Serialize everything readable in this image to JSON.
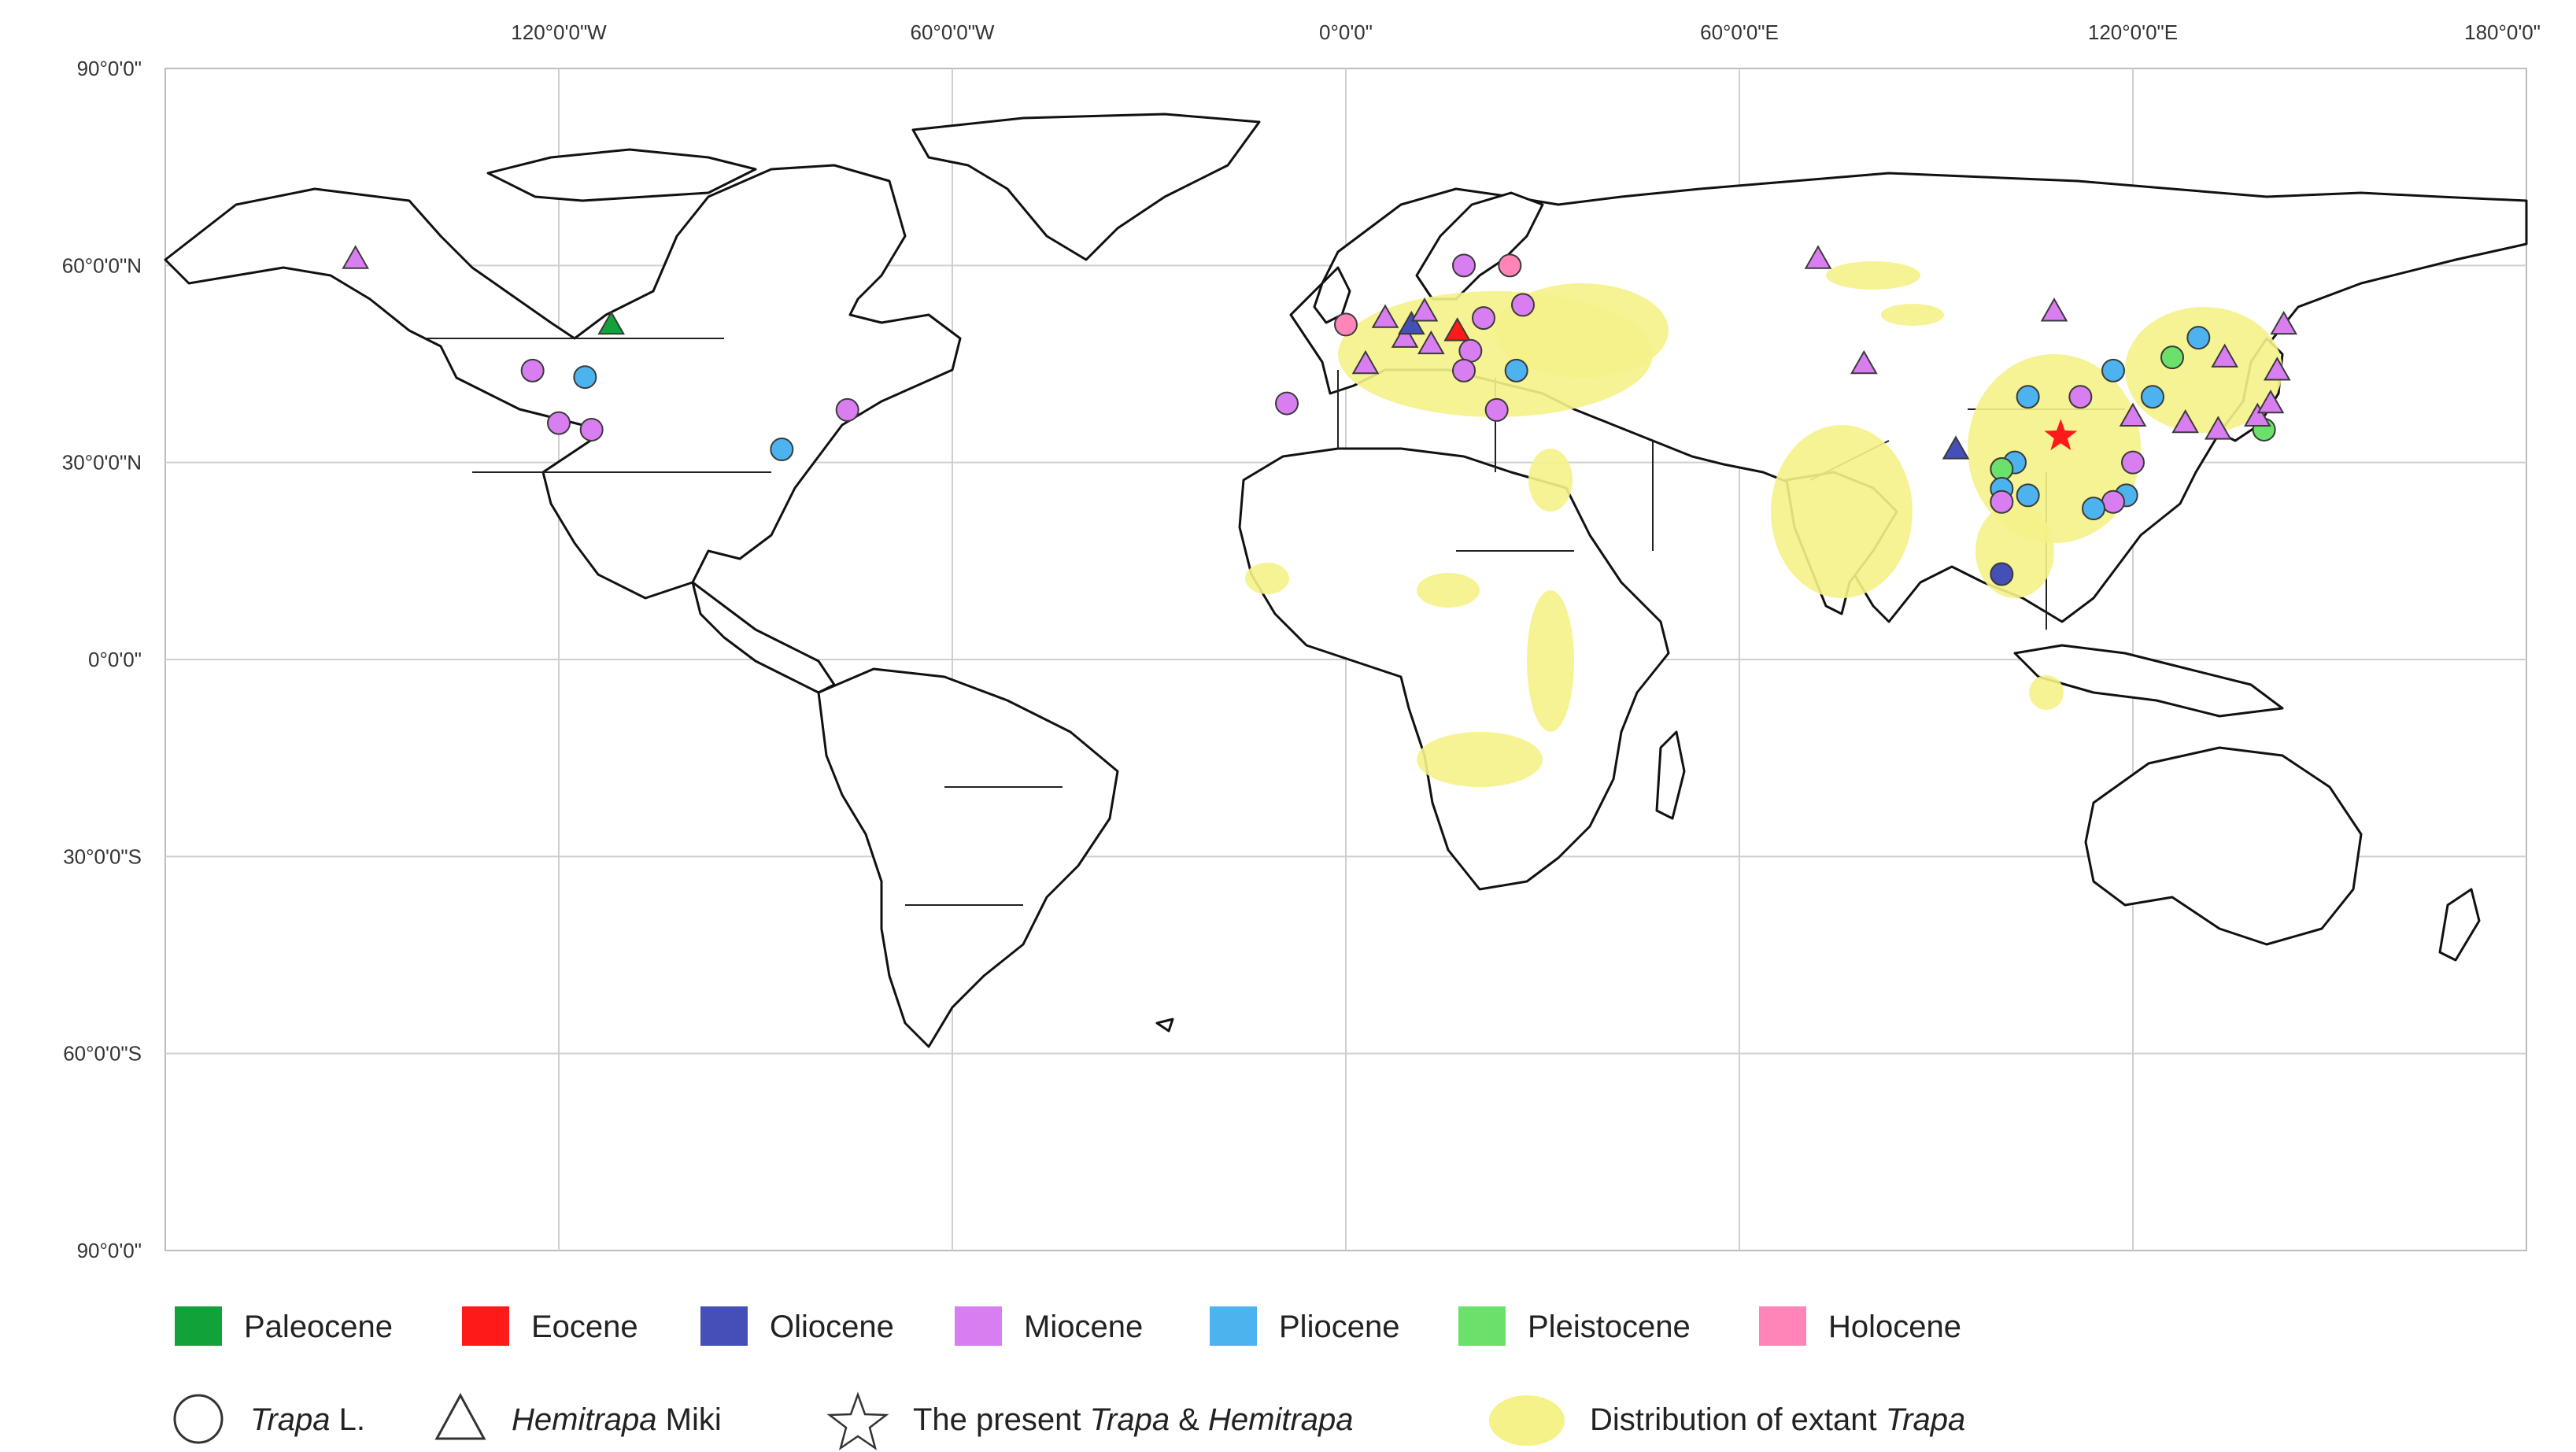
{
  "axes": {
    "lon_labels": [
      "120°0'0\"W",
      "60°0'0\"W",
      "0°0'0\"",
      "60°0'0\"E",
      "120°0'0\"E",
      "180°0'0\""
    ],
    "lat_labels": [
      "90°0'0\"",
      "60°0'0\"N",
      "30°0'0\"N",
      "0°0'0\"",
      "30°0'0\"S",
      "60°0'0\"S",
      "90°0'0\""
    ],
    "lon_values": [
      -120,
      -60,
      0,
      60,
      120,
      180
    ],
    "lat_values": [
      90,
      60,
      30,
      0,
      -30,
      -60,
      -90
    ],
    "lon_range": [
      -180,
      180
    ],
    "lat_range": [
      -90,
      90
    ]
  },
  "colors": {
    "Paleocene": "#11a33a",
    "Eocene": "#ff1a1a",
    "Oliocene": "#4450b8",
    "Miocene": "#d97ef0",
    "Pliocene": "#4db3ef",
    "Pleistocene": "#6be06b",
    "Holocene": "#ff85b8",
    "distribution": "#f5f28a",
    "present": "#ff1a1a"
  },
  "legend": {
    "epochs": [
      "Paleocene",
      "Eocene",
      "Oliocene",
      "Miocene",
      "Pliocene",
      "Pleistocene",
      "Holocene"
    ],
    "trapa_italic": "Trapa",
    "trapa_rest": " L.",
    "hemitrapa_italic": "Hemitrapa",
    "hemitrapa_rest": " Miki",
    "present_a": "The present ",
    "present_trapa": "Trapa",
    "present_amp": " & ",
    "present_hemitrapa": "Hemitrapa",
    "distribution_a": "Distribution of extant ",
    "distribution_trapa": "Trapa"
  },
  "fossil_sites": [
    {
      "shape": "circle",
      "epoch": "Miocene",
      "lon": -124,
      "lat": 44
    },
    {
      "shape": "circle",
      "epoch": "Pliocene",
      "lon": -116,
      "lat": 43
    },
    {
      "shape": "circle",
      "epoch": "Miocene",
      "lon": -120,
      "lat": 36
    },
    {
      "shape": "circle",
      "epoch": "Miocene",
      "lon": -115,
      "lat": 35
    },
    {
      "shape": "circle",
      "epoch": "Miocene",
      "lon": -76,
      "lat": 38
    },
    {
      "shape": "circle",
      "epoch": "Pliocene",
      "lon": -86,
      "lat": 32
    },
    {
      "shape": "triangle",
      "epoch": "Miocene",
      "lon": -151,
      "lat": 61
    },
    {
      "shape": "triangle",
      "epoch": "Paleocene",
      "lon": -112,
      "lat": 51
    },
    {
      "shape": "circle",
      "epoch": "Miocene",
      "lon": -9,
      "lat": 39
    },
    {
      "shape": "circle",
      "epoch": "Holocene",
      "lon": 0,
      "lat": 51
    },
    {
      "shape": "triangle",
      "epoch": "Miocene",
      "lon": 3,
      "lat": 45
    },
    {
      "shape": "triangle",
      "epoch": "Miocene",
      "lon": 6,
      "lat": 52
    },
    {
      "shape": "triangle",
      "epoch": "Miocene",
      "lon": 9,
      "lat": 49
    },
    {
      "shape": "triangle",
      "epoch": "Oliocene",
      "lon": 10,
      "lat": 51
    },
    {
      "shape": "triangle",
      "epoch": "Miocene",
      "lon": 12,
      "lat": 53
    },
    {
      "shape": "triangle",
      "epoch": "Miocene",
      "lon": 13,
      "lat": 48
    },
    {
      "shape": "triangle",
      "epoch": "Eocene",
      "lon": 17,
      "lat": 50
    },
    {
      "shape": "circle",
      "epoch": "Miocene",
      "lon": 19,
      "lat": 47
    },
    {
      "shape": "circle",
      "epoch": "Miocene",
      "lon": 18,
      "lat": 44
    },
    {
      "shape": "circle",
      "epoch": "Miocene",
      "lon": 18,
      "lat": 60
    },
    {
      "shape": "circle",
      "epoch": "Holocene",
      "lon": 25,
      "lat": 60
    },
    {
      "shape": "circle",
      "epoch": "Miocene",
      "lon": 21,
      "lat": 52
    },
    {
      "shape": "circle",
      "epoch": "Miocene",
      "lon": 27,
      "lat": 54
    },
    {
      "shape": "circle",
      "epoch": "Pliocene",
      "lon": 26,
      "lat": 44
    },
    {
      "shape": "circle",
      "epoch": "Miocene",
      "lon": 23,
      "lat": 38
    },
    {
      "shape": "triangle",
      "epoch": "Miocene",
      "lon": 72,
      "lat": 61
    },
    {
      "shape": "triangle",
      "epoch": "Miocene",
      "lon": 79,
      "lat": 45
    },
    {
      "shape": "triangle",
      "epoch": "Oliocene",
      "lon": 93,
      "lat": 32
    },
    {
      "shape": "triangle",
      "epoch": "Miocene",
      "lon": 108,
      "lat": 53
    },
    {
      "shape": "circle",
      "epoch": "Pliocene",
      "lon": 104,
      "lat": 40
    },
    {
      "shape": "circle",
      "epoch": "Miocene",
      "lon": 112,
      "lat": 40
    },
    {
      "shape": "circle",
      "epoch": "Pliocene",
      "lon": 117,
      "lat": 44
    },
    {
      "shape": "circle",
      "epoch": "Pliocene",
      "lon": 123,
      "lat": 40
    },
    {
      "shape": "circle",
      "epoch": "Pleistocene",
      "lon": 126,
      "lat": 46
    },
    {
      "shape": "circle",
      "epoch": "Pliocene",
      "lon": 130,
      "lat": 49
    },
    {
      "shape": "triangle",
      "epoch": "Miocene",
      "lon": 134,
      "lat": 46
    },
    {
      "shape": "triangle",
      "epoch": "Miocene",
      "lon": 143,
      "lat": 51
    },
    {
      "shape": "triangle",
      "epoch": "Miocene",
      "lon": 142,
      "lat": 44
    },
    {
      "shape": "circle",
      "epoch": "Miocene",
      "lon": 120,
      "lat": 30
    },
    {
      "shape": "circle",
      "epoch": "Pliocene",
      "lon": 119,
      "lat": 25
    },
    {
      "shape": "circle",
      "epoch": "Miocene",
      "lon": 117,
      "lat": 24
    },
    {
      "shape": "circle",
      "epoch": "Pliocene",
      "lon": 114,
      "lat": 23
    },
    {
      "shape": "triangle",
      "epoch": "Miocene",
      "lon": 120,
      "lat": 37
    },
    {
      "shape": "triangle",
      "epoch": "Miocene",
      "lon": 128,
      "lat": 36
    },
    {
      "shape": "triangle",
      "epoch": "Miocene",
      "lon": 133,
      "lat": 35
    },
    {
      "shape": "circle",
      "epoch": "Pleistocene",
      "lon": 140,
      "lat": 35
    },
    {
      "shape": "triangle",
      "epoch": "Miocene",
      "lon": 139,
      "lat": 37
    },
    {
      "shape": "triangle",
      "epoch": "Miocene",
      "lon": 141,
      "lat": 39
    },
    {
      "shape": "circle",
      "epoch": "Pliocene",
      "lon": 102,
      "lat": 30
    },
    {
      "shape": "circle",
      "epoch": "Pleistocene",
      "lon": 100,
      "lat": 29
    },
    {
      "shape": "circle",
      "epoch": "Pliocene",
      "lon": 100,
      "lat": 26
    },
    {
      "shape": "circle",
      "epoch": "Miocene",
      "lon": 100,
      "lat": 24
    },
    {
      "shape": "circle",
      "epoch": "Pliocene",
      "lon": 104,
      "lat": 25
    },
    {
      "shape": "circle",
      "epoch": "Oliocene",
      "lon": 100,
      "lat": 13
    }
  ],
  "present_site": {
    "lon": 109,
    "lat": 34
  }
}
